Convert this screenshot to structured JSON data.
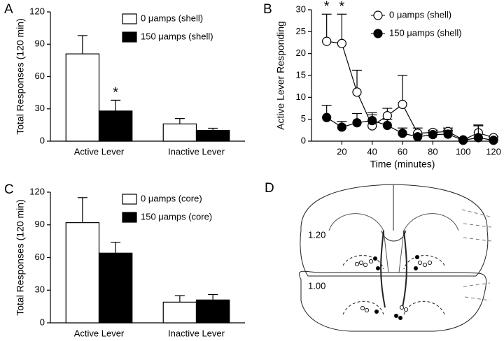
{
  "chart_data": [
    {
      "type": "bar",
      "panel_label": "A",
      "ylabel": "Total Responses (120 min)",
      "categories": [
        "Active Lever",
        "Inactive Lever"
      ],
      "series": [
        {
          "name": "0 μamps (shell)",
          "color": "#ffffff",
          "values": [
            81,
            16
          ],
          "errors": [
            17,
            5
          ],
          "annotations": [
            null,
            null
          ]
        },
        {
          "name": "150 μamps (shell)",
          "color": "#000000",
          "values": [
            28,
            10
          ],
          "errors": [
            10,
            2
          ],
          "annotations": [
            "*",
            null
          ]
        }
      ],
      "ylim": [
        0,
        120
      ],
      "yticks": [
        0,
        30,
        60,
        90,
        120
      ],
      "legend": "upper right"
    },
    {
      "type": "line",
      "panel_label": "B",
      "ylabel": "Active Lever Responding",
      "xlabel": "Time (minutes)",
      "x": [
        10,
        20,
        30,
        40,
        50,
        60,
        70,
        80,
        90,
        100,
        110,
        120
      ],
      "series": [
        {
          "name": "0 μamps (shell)",
          "color": "#ffffff",
          "values": [
            22.8,
            22.3,
            11.2,
            3.5,
            5.8,
            8.4,
            1.8,
            2.0,
            2.2,
            0.3,
            1.9,
            0.8
          ],
          "errors": [
            6.2,
            6.7,
            5.0,
            3.0,
            1.7,
            6.6,
            1.2,
            0.5,
            0.8,
            0.2,
            1.6,
            0.2
          ],
          "annotations": [
            "*",
            "*",
            null,
            null,
            null,
            null,
            null,
            null,
            null,
            null,
            null,
            null
          ]
        },
        {
          "name": "150 μamps (shell)",
          "color": "#000000",
          "values": [
            5.4,
            3.2,
            4.2,
            4.7,
            3.6,
            1.8,
            1.0,
            1.5,
            1.6,
            0.2,
            0.8,
            0.2
          ],
          "errors": [
            2.8,
            1.3,
            2.1,
            1.3,
            1.4,
            1.2,
            0.5,
            0.5,
            0.9,
            0.1,
            2.9,
            0.1
          ],
          "annotations": [
            null,
            null,
            null,
            null,
            null,
            null,
            null,
            null,
            null,
            null,
            null,
            null
          ]
        }
      ],
      "xlim": [
        0,
        120
      ],
      "xticks": [
        20,
        40,
        60,
        80,
        100,
        120
      ],
      "ylim": [
        0,
        30
      ],
      "yticks": [
        0,
        5,
        10,
        15,
        20,
        25,
        30
      ],
      "legend": "upper right"
    },
    {
      "type": "bar",
      "panel_label": "C",
      "ylabel": "Total Responses (120 min)",
      "categories": [
        "Active Lever",
        "Inactive Lever"
      ],
      "series": [
        {
          "name": "0 μamps (core)",
          "color": "#ffffff",
          "values": [
            92,
            19
          ],
          "errors": [
            23,
            6
          ],
          "annotations": [
            null,
            null
          ]
        },
        {
          "name": "150 μamps (core)",
          "color": "#000000",
          "values": [
            64,
            21
          ],
          "errors": [
            10,
            5
          ],
          "annotations": [
            null,
            null
          ]
        }
      ],
      "ylim": [
        0,
        120
      ],
      "yticks": [
        0,
        30,
        60,
        90,
        120
      ],
      "legend": "upper right"
    }
  ],
  "diagram": {
    "panel_label": "D",
    "section_labels": [
      "1.20",
      "1.00"
    ]
  }
}
